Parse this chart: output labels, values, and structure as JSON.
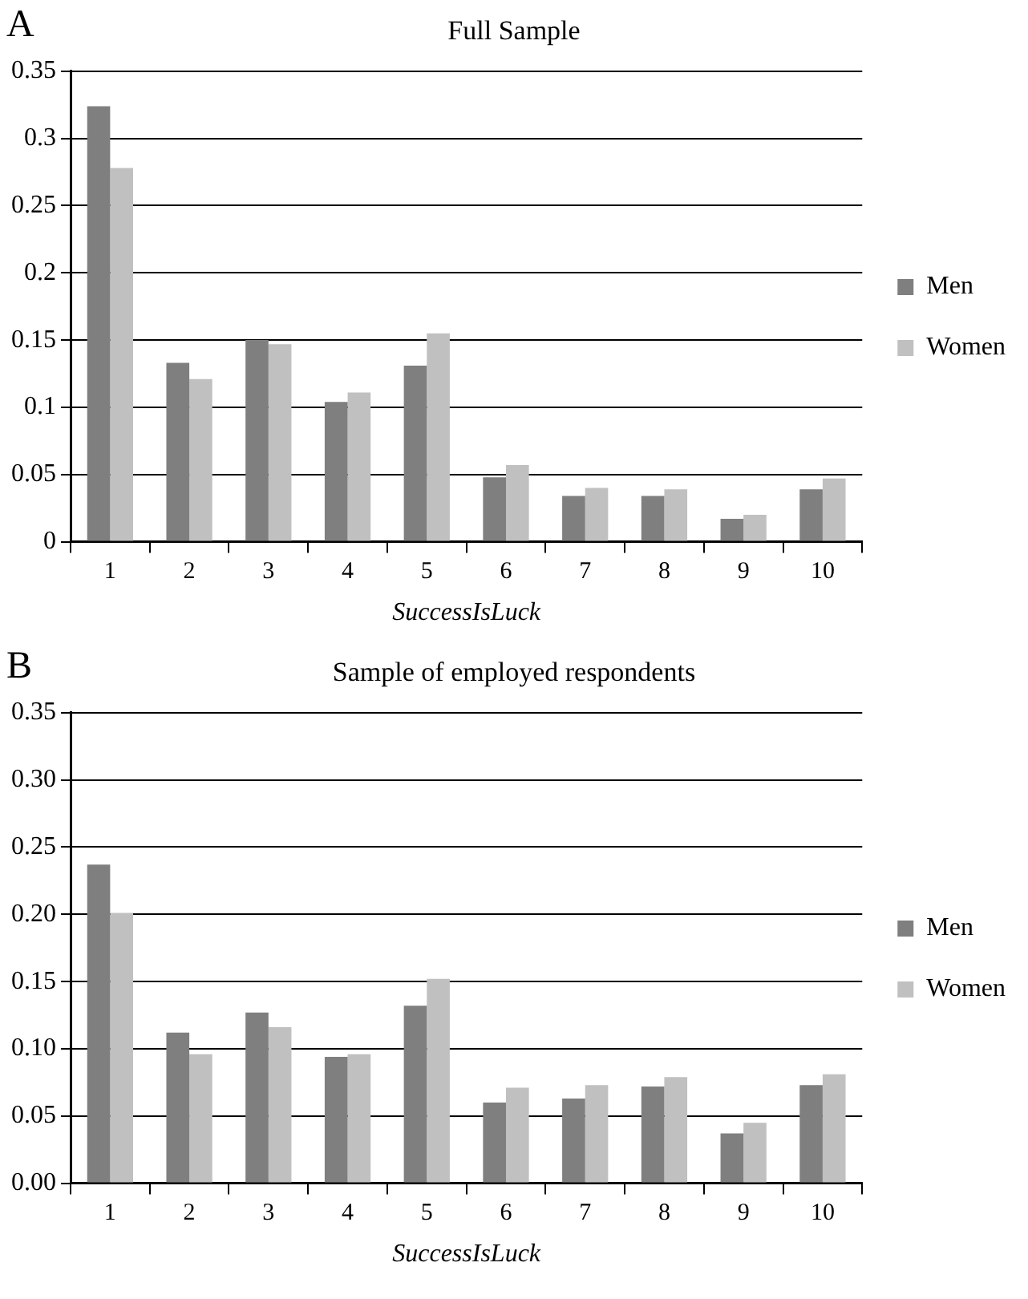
{
  "chart_data": [
    {
      "type": "bar",
      "title": "Full Sample",
      "xlabel": "SuccessIsLuck",
      "annotations": [
        "A"
      ],
      "categories": [
        "1",
        "2",
        "3",
        "4",
        "5",
        "6",
        "7",
        "8",
        "9",
        "10"
      ],
      "series": [
        {
          "name": "Men",
          "color": "#7f7f7f",
          "values": [
            0.324,
            0.133,
            0.15,
            0.104,
            0.131,
            0.048,
            0.034,
            0.034,
            0.017,
            0.039
          ]
        },
        {
          "name": "Women",
          "color": "#c0c0c0",
          "values": [
            0.278,
            0.121,
            0.147,
            0.111,
            0.155,
            0.057,
            0.04,
            0.039,
            0.02,
            0.047
          ]
        }
      ],
      "ylim": [
        0,
        0.35
      ],
      "yticks": [
        0,
        0.05,
        0.1,
        0.15,
        0.2,
        0.25,
        0.3,
        0.35
      ],
      "grid": "y",
      "legend": "right"
    },
    {
      "type": "bar",
      "title": "Sample of employed respondents",
      "xlabel": "SuccessIsLuck",
      "annotations": [
        "B"
      ],
      "categories": [
        "1",
        "2",
        "3",
        "4",
        "5",
        "6",
        "7",
        "8",
        "9",
        "10"
      ],
      "series": [
        {
          "name": "Men",
          "color": "#7f7f7f",
          "values": [
            0.237,
            0.112,
            0.127,
            0.094,
            0.132,
            0.06,
            0.063,
            0.072,
            0.037,
            0.073
          ]
        },
        {
          "name": "Women",
          "color": "#c0c0c0",
          "values": [
            0.201,
            0.096,
            0.116,
            0.096,
            0.152,
            0.071,
            0.073,
            0.079,
            0.045,
            0.081
          ]
        }
      ],
      "ylim": [
        0,
        0.35
      ],
      "yticks": [
        {
          "value": 0,
          "label": "0.00"
        },
        {
          "value": 0.05,
          "label": "0.05"
        },
        {
          "value": 0.1,
          "label": "0.10"
        },
        {
          "value": 0.15,
          "label": "0.15"
        },
        {
          "value": 0.2,
          "label": "0.20"
        },
        {
          "value": 0.25,
          "label": "0.25"
        },
        {
          "value": 0.3,
          "label": "0.30"
        },
        {
          "value": 0.35,
          "label": "0.35"
        }
      ],
      "grid": "y",
      "legend": "right"
    }
  ]
}
